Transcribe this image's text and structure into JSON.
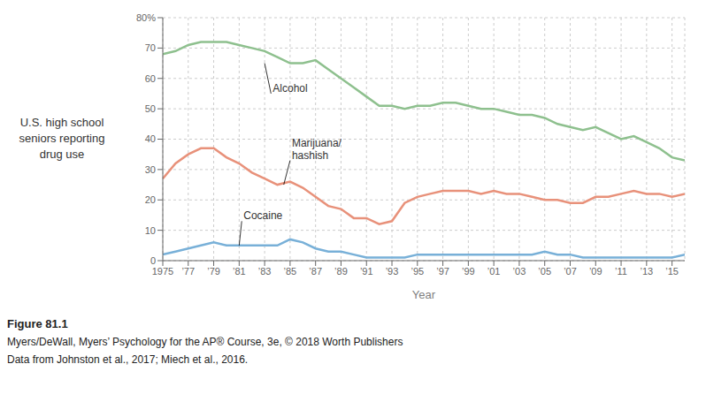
{
  "chart_data": {
    "type": "line",
    "xlabel": "Year",
    "ylabel": "U.S. high school\nseniors reporting\ndrug use",
    "x": [
      1975,
      1976,
      1977,
      1978,
      1979,
      1980,
      1981,
      1982,
      1983,
      1984,
      1985,
      1986,
      1987,
      1988,
      1989,
      1990,
      1991,
      1992,
      1993,
      1994,
      1995,
      1996,
      1997,
      1998,
      1999,
      2000,
      2001,
      2002,
      2003,
      2004,
      2005,
      2006,
      2007,
      2008,
      2009,
      2010,
      2011,
      2012,
      2013,
      2014,
      2015,
      2016
    ],
    "series": [
      {
        "color": "#8ec08e",
        "values": [
          68,
          69,
          71,
          72,
          72,
          72,
          71,
          70,
          69,
          67,
          65,
          65,
          66,
          63,
          60,
          57,
          54,
          51,
          51,
          50,
          51,
          51,
          52,
          52,
          51,
          50,
          50,
          49,
          48,
          48,
          47,
          45,
          44,
          43,
          44,
          42,
          40,
          41,
          39,
          37,
          34,
          33
        ]
      },
      {
        "color": "#e8917a",
        "values": [
          27,
          32,
          35,
          37,
          37,
          34,
          32,
          29,
          27,
          25,
          26,
          24,
          21,
          18,
          17,
          14,
          14,
          12,
          13,
          19,
          21,
          22,
          23,
          23,
          23,
          22,
          23,
          22,
          22,
          21,
          20,
          20,
          19,
          19,
          21,
          21,
          22,
          23,
          22,
          22,
          21,
          22
        ]
      },
      {
        "color": "#78b0d8",
        "values": [
          2,
          3,
          4,
          5,
          6,
          5,
          5,
          5,
          5,
          5,
          7,
          6,
          4,
          3,
          3,
          2,
          1,
          1,
          1,
          1,
          2,
          2,
          2,
          2,
          2,
          2,
          2,
          2,
          2,
          2,
          3,
          2,
          2,
          1,
          1,
          1,
          1,
          1,
          1,
          1,
          1,
          2
        ]
      }
    ],
    "xlim": [
      1975,
      2016
    ],
    "xticks": [
      {
        "value": 1975,
        "label": "1975"
      },
      {
        "value": 1977,
        "label": "’77"
      },
      {
        "value": 1979,
        "label": "’79"
      },
      {
        "value": 1981,
        "label": "’81"
      },
      {
        "value": 1983,
        "label": "’83"
      },
      {
        "value": 1985,
        "label": "’85"
      },
      {
        "value": 1987,
        "label": "’87"
      },
      {
        "value": 1989,
        "label": "’89"
      },
      {
        "value": 1991,
        "label": "’91"
      },
      {
        "value": 1993,
        "label": "’93"
      },
      {
        "value": 1995,
        "label": "’95"
      },
      {
        "value": 1997,
        "label": "’97"
      },
      {
        "value": 1999,
        "label": "’99"
      },
      {
        "value": 2001,
        "label": "’01"
      },
      {
        "value": 2003,
        "label": "’03"
      },
      {
        "value": 2005,
        "label": "’05"
      },
      {
        "value": 2007,
        "label": "’07"
      },
      {
        "value": 2009,
        "label": "’09"
      },
      {
        "value": 2011,
        "label": "’11"
      },
      {
        "value": 2013,
        "label": "’13"
      },
      {
        "value": 2015,
        "label": "’15"
      }
    ],
    "ylim": [
      0,
      80
    ],
    "yticks": [
      0,
      10,
      20,
      30,
      40,
      50,
      60,
      70,
      {
        "value": 80,
        "label": "80%"
      }
    ],
    "grid": true,
    "annotations": [
      {
        "text": "Alcohol",
        "x": 1983,
        "y": 65,
        "text_x": 1983.5,
        "text_y": 55
      },
      {
        "text": "Marijuana/\nhashish",
        "x": 1984.5,
        "y": 25,
        "text_x": 1985,
        "text_y": 33
      },
      {
        "text": "Cocaine",
        "x": 1981,
        "y": 5,
        "text_x": 1981.2,
        "text_y": 13
      }
    ],
    "caption": [
      "Figure 81.1",
      "Myers/DeWall, Myers’ Psychology for the AP® Course, 3e, © 2018 Worth Publishers",
      "Data from Johnston et al., 2017; Miech et al., 2016."
    ]
  }
}
